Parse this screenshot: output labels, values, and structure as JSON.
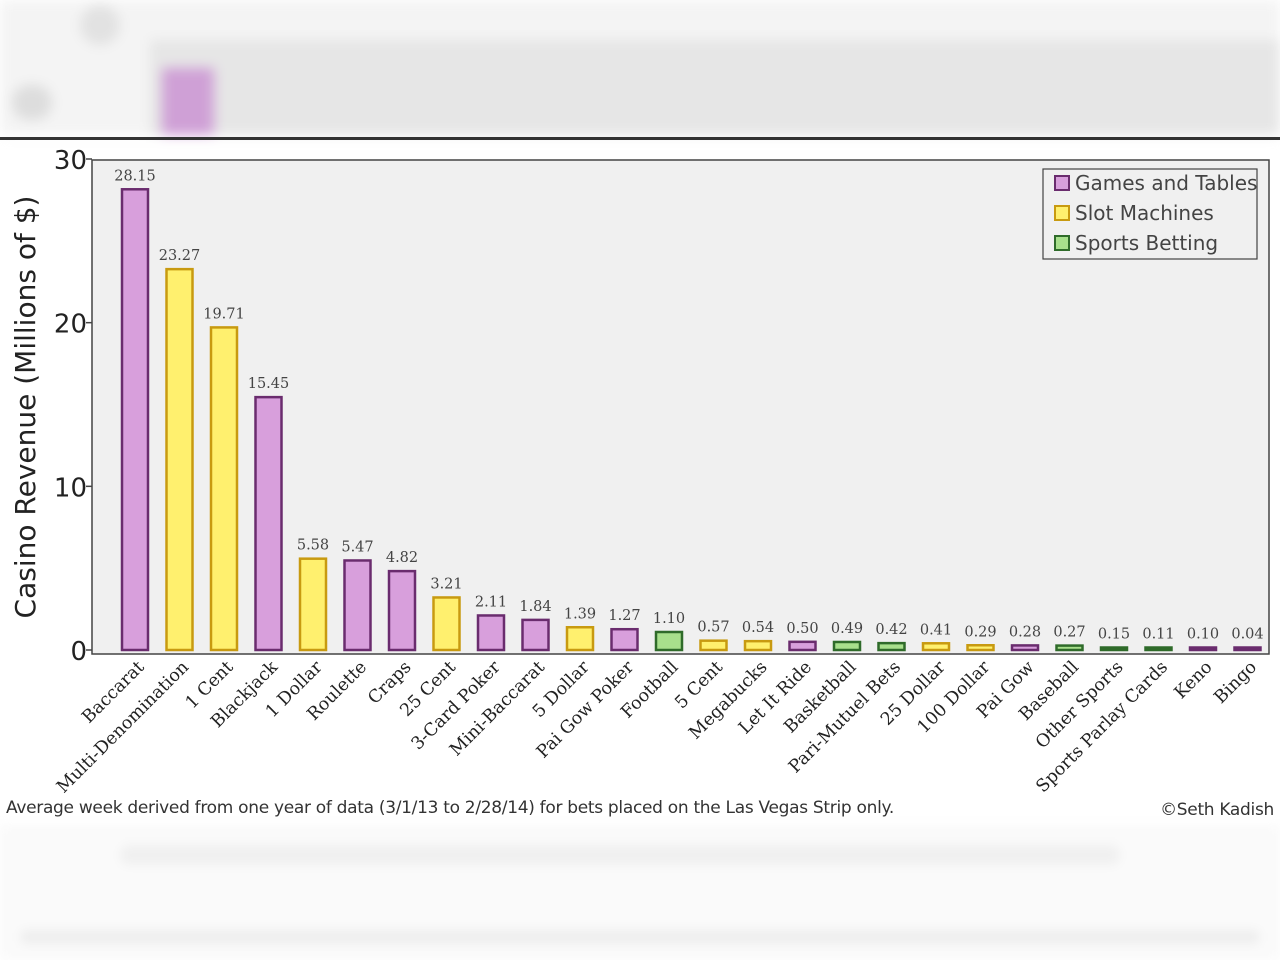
{
  "chart_data": {
    "type": "bar",
    "ylabel": "Casino Revenue (Millions of $)",
    "ylim": [
      0,
      30
    ],
    "yticks": [
      0,
      10,
      20,
      30
    ],
    "grid": false,
    "legend_position": "top-right",
    "legend": [
      {
        "name": "Games and Tables",
        "fill": "#d89fdc",
        "stroke": "#6a2c6e"
      },
      {
        "name": "Slot Machines",
        "fill": "#fff06e",
        "stroke": "#c89a10"
      },
      {
        "name": "Sports Betting",
        "fill": "#a8e08c",
        "stroke": "#2f6b2a"
      }
    ],
    "categories": [
      "Baccarat",
      "Multi-Denomination",
      "1 Cent",
      "Blackjack",
      "1 Dollar",
      "Roulette",
      "Craps",
      "25 Cent",
      "3-Card Poker",
      "Mini-Baccarat",
      "5 Dollar",
      "Pai Gow Poker",
      "Football",
      "5 Cent",
      "Megabucks",
      "Let It Ride",
      "Basketball",
      "Pari-Mutuel Bets",
      "25 Dollar",
      "100 Dollar",
      "Pai Gow",
      "Baseball",
      "Other Sports",
      "Sports Parlay Cards",
      "Keno",
      "Bingo"
    ],
    "values": [
      28.15,
      23.27,
      19.71,
      15.45,
      5.58,
      5.47,
      4.82,
      3.21,
      2.11,
      1.84,
      1.39,
      1.27,
      1.1,
      0.57,
      0.54,
      0.5,
      0.49,
      0.42,
      0.41,
      0.29,
      0.28,
      0.27,
      0.15,
      0.11,
      0.1,
      0.04
    ],
    "value_labels": [
      "28.15",
      "23.27",
      "19.71",
      "15.45",
      "5.58",
      "5.47",
      "4.82",
      "3.21",
      "2.11",
      "1.84",
      "1.39",
      "1.27",
      "1.10",
      "0.57",
      "0.54",
      "0.50",
      "0.49",
      "0.42",
      "0.41",
      "0.29",
      "0.28",
      "0.27",
      "0.15",
      "0.11",
      "0.10",
      "0.04"
    ],
    "groups": [
      "Games and Tables",
      "Slot Machines",
      "Slot Machines",
      "Games and Tables",
      "Slot Machines",
      "Games and Tables",
      "Games and Tables",
      "Slot Machines",
      "Games and Tables",
      "Games and Tables",
      "Slot Machines",
      "Games and Tables",
      "Sports Betting",
      "Slot Machines",
      "Slot Machines",
      "Games and Tables",
      "Sports Betting",
      "Sports Betting",
      "Slot Machines",
      "Slot Machines",
      "Games and Tables",
      "Sports Betting",
      "Sports Betting",
      "Sports Betting",
      "Games and Tables",
      "Games and Tables"
    ]
  },
  "footnote": "Average week derived from one year of data (3/1/13 to 2/28/14) for bets placed on the Las Vegas Strip only.",
  "credit": "©Seth Kadish"
}
